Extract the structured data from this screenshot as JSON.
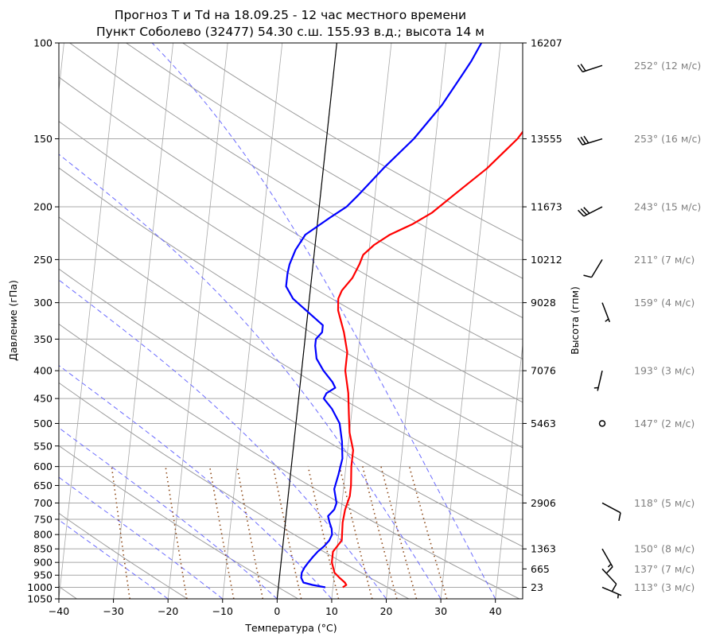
{
  "title": {
    "line1": "Прогноз T и Td на 18.09.25 - 12 час местного времени",
    "line2": "Пункт Соболево (32477) 54.30 с.ш. 155.93 в.д.; высота 14 м"
  },
  "chart_data": {
    "type": "line",
    "diagram": "skew-T log-p",
    "xlabel": "Температура (°C)",
    "ylabel": "Давление (гПа)",
    "y2label": "Высота (гпм)",
    "xlim": [
      -40,
      45
    ],
    "ylim": [
      1050,
      100
    ],
    "y_scale": "log",
    "x_ticks": [
      -40,
      -30,
      -20,
      -10,
      0,
      10,
      20,
      30,
      40
    ],
    "y_ticks": [
      100,
      150,
      200,
      250,
      300,
      350,
      400,
      450,
      500,
      550,
      600,
      650,
      700,
      750,
      800,
      850,
      900,
      950,
      1000,
      1050
    ],
    "height_ticks": [
      {
        "p": 100,
        "label": "16207"
      },
      {
        "p": 150,
        "label": "13555"
      },
      {
        "p": 200,
        "label": "11673"
      },
      {
        "p": 250,
        "label": "10212"
      },
      {
        "p": 300,
        "label": "9028"
      },
      {
        "p": 400,
        "label": "7076"
      },
      {
        "p": 500,
        "label": "5463"
      },
      {
        "p": 700,
        "label": "2906"
      },
      {
        "p": 850,
        "label": "1363"
      },
      {
        "p": 925,
        "label": "665"
      },
      {
        "p": 1000,
        "label": "23"
      }
    ],
    "grid": true,
    "series": [
      {
        "color": "#ff0000",
        "points": [
          [
            1000,
            11.8
          ],
          [
            990,
            12.4
          ],
          [
            980,
            12.1
          ],
          [
            960,
            11.0
          ],
          [
            940,
            10.0
          ],
          [
            900,
            9.3
          ],
          [
            860,
            9.3
          ],
          [
            820,
            10.7
          ],
          [
            760,
            10.5
          ],
          [
            720,
            10.7
          ],
          [
            680,
            11.3
          ],
          [
            650,
            11.3
          ],
          [
            600,
            11.0
          ],
          [
            560,
            11.0
          ],
          [
            520,
            10.0
          ],
          [
            480,
            9.5
          ],
          [
            440,
            9.0
          ],
          [
            400,
            8.0
          ],
          [
            370,
            8.0
          ],
          [
            340,
            7.0
          ],
          [
            310,
            5.5
          ],
          [
            295,
            5.3
          ],
          [
            285,
            5.8
          ],
          [
            270,
            7.5
          ],
          [
            255,
            8.5
          ],
          [
            245,
            9.0
          ],
          [
            235,
            10.8
          ],
          [
            225,
            13.5
          ],
          [
            215,
            17.5
          ],
          [
            205,
            20.8
          ],
          [
            190,
            24.5
          ],
          [
            170,
            30.0
          ],
          [
            150,
            35.0
          ],
          [
            130,
            39.0
          ],
          [
            113,
            44.8
          ]
        ]
      },
      {
        "color": "#0000ff",
        "points": [
          [
            1000,
            8.6
          ],
          [
            990,
            6.2
          ],
          [
            980,
            4.5
          ],
          [
            960,
            4.0
          ],
          [
            940,
            4.0
          ],
          [
            920,
            4.4
          ],
          [
            900,
            5.0
          ],
          [
            880,
            5.7
          ],
          [
            860,
            6.5
          ],
          [
            840,
            7.6
          ],
          [
            820,
            8.4
          ],
          [
            800,
            8.8
          ],
          [
            780,
            8.6
          ],
          [
            760,
            8.1
          ],
          [
            740,
            7.7
          ],
          [
            720,
            8.7
          ],
          [
            700,
            9.0
          ],
          [
            660,
            8.3
          ],
          [
            620,
            8.8
          ],
          [
            580,
            9.2
          ],
          [
            540,
            8.8
          ],
          [
            500,
            8.0
          ],
          [
            470,
            6.3
          ],
          [
            450,
            4.6
          ],
          [
            440,
            5.0
          ],
          [
            430,
            6.5
          ],
          [
            420,
            5.9
          ],
          [
            400,
            4.0
          ],
          [
            380,
            2.5
          ],
          [
            360,
            2.0
          ],
          [
            350,
            2.0
          ],
          [
            340,
            3.0
          ],
          [
            330,
            3.0
          ],
          [
            315,
            0.5
          ],
          [
            295,
            -3.0
          ],
          [
            280,
            -4.5
          ],
          [
            265,
            -4.5
          ],
          [
            255,
            -4.3
          ],
          [
            240,
            -3.5
          ],
          [
            225,
            -2.0
          ],
          [
            210,
            2.0
          ],
          [
            200,
            5.0
          ],
          [
            190,
            7.0
          ],
          [
            170,
            11.0
          ],
          [
            150,
            16.0
          ],
          [
            130,
            20.5
          ],
          [
            115,
            23.5
          ],
          [
            108,
            25.0
          ],
          [
            100,
            26.5
          ]
        ]
      }
    ],
    "winds": [
      {
        "p": 110,
        "dir": 252,
        "speed": 12,
        "label": "252° (12 м/с)"
      },
      {
        "p": 150,
        "dir": 253,
        "speed": 16,
        "label": "253° (16 м/с)"
      },
      {
        "p": 200,
        "dir": 243,
        "speed": 15,
        "label": "243° (15 м/с)"
      },
      {
        "p": 250,
        "dir": 211,
        "speed": 7,
        "label": "211° (7 м/с)"
      },
      {
        "p": 300,
        "dir": 159,
        "speed": 4,
        "label": "159° (4 м/с)"
      },
      {
        "p": 400,
        "dir": 193,
        "speed": 3,
        "label": "193° (3 м/с)"
      },
      {
        "p": 500,
        "dir": 147,
        "speed": 2,
        "label": "147° (2 м/с)"
      },
      {
        "p": 700,
        "dir": 118,
        "speed": 5,
        "label": "118° (5 м/с)"
      },
      {
        "p": 850,
        "dir": 150,
        "speed": 8,
        "label": "150° (8 м/с)"
      },
      {
        "p": 925,
        "dir": 137,
        "speed": 7,
        "label": "137° (7 м/с)"
      },
      {
        "p": 1000,
        "dir": 113,
        "speed": 3,
        "label": "113° (3 м/с)"
      }
    ],
    "colors": {
      "temperature": "#ff0000",
      "dewpoint": "#0000ff",
      "dry_adiabats": "#9c9c9c",
      "moist_adiabats": "#6b6bff",
      "mixing_ratio": "#8b4513",
      "isotherm_zero": "#000000",
      "wind_label": "#808080"
    }
  }
}
